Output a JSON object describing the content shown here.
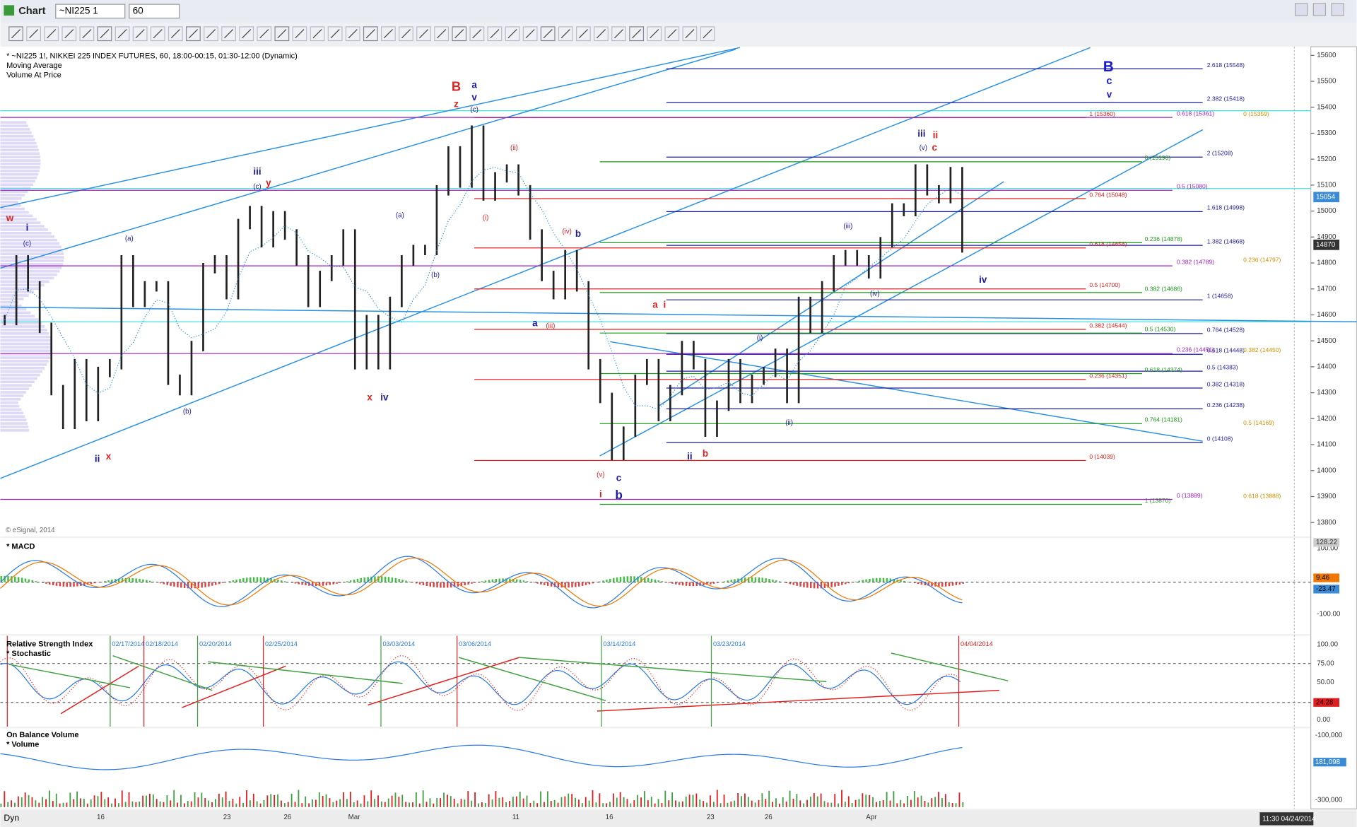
{
  "window": {
    "title": "Chart",
    "symbol": "~NI225 1",
    "interval": "60"
  },
  "legend": [
    "* ~NI225 1!, NIKKEI 225 INDEX FUTURES, 60, 18:00-00:15, 01:30-12:00 (Dynamic)",
    "Moving Average",
    "Volume At Price"
  ],
  "copyright": "© eSignal, 2014",
  "price_ticks": [
    15600,
    15500,
    15400,
    15300,
    15200,
    15100,
    15000,
    14900,
    14800,
    14700,
    14600,
    14500,
    14400,
    14300,
    14200,
    14100,
    14000,
    13900,
    13800
  ],
  "price_flags": [
    {
      "value": 15054,
      "color": "#3a8ad6"
    },
    {
      "value": 14870,
      "color": "#333333"
    }
  ],
  "price_series": [
    14580,
    14810,
    14710,
    14550,
    14310,
    14180,
    14410,
    14210,
    14380,
    14410,
    14810,
    14650,
    14710,
    14710,
    14350,
    14310,
    14480,
    14780,
    14810,
    14680,
    14950,
    15000,
    14880,
    14980,
    14910,
    14810,
    14650,
    14750,
    14810,
    14910,
    14410,
    14580,
    14410,
    14650,
    14810,
    14850,
    14850,
    15080,
    15230,
    15110,
    15310,
    15060,
    15130,
    15160,
    15080,
    14910,
    14750,
    14680,
    14830,
    14710,
    14410,
    14280,
    14060,
    14150,
    14350,
    14410,
    14210,
    14310,
    14480,
    14410,
    14150,
    14250,
    14410,
    14280,
    14350,
    14380,
    14450,
    14280,
    14650,
    14550,
    14710,
    14810,
    14830,
    14810,
    14760,
    14880,
    15010,
    15000,
    15160,
    15080,
    15050,
    15150,
    14860
  ],
  "fib_sets": [
    {
      "color": "#1a1aa0",
      "levels": [
        {
          "value": 15548,
          "label": "2.618 (15548)"
        },
        {
          "value": 15418,
          "label": "2.382 (15418)"
        },
        {
          "value": 15208,
          "label": "2 (15208)"
        },
        {
          "value": 14998,
          "label": "1.618 (14998)"
        },
        {
          "value": 14868,
          "label": "1.382 (14868)"
        },
        {
          "value": 14658,
          "label": "1 (14658)"
        },
        {
          "value": 14528,
          "label": "0.764 (14528)"
        },
        {
          "value": 14448,
          "label": "0.618 (14448)"
        },
        {
          "value": 14383,
          "label": "0.5 (14383)"
        },
        {
          "value": 14318,
          "label": "0.382 (14318)"
        },
        {
          "value": 14238,
          "label": "0.236 (14238)"
        },
        {
          "value": 14108,
          "label": "0 (14108)"
        }
      ]
    },
    {
      "color": "#e02020",
      "levels": [
        {
          "value": 15360,
          "label": "1 (15360)"
        },
        {
          "value": 15048,
          "label": "0.764 (15048)"
        },
        {
          "value": 14858,
          "label": "0.618 (14858)"
        },
        {
          "value": 14700,
          "label": "0.5 (14700)"
        },
        {
          "value": 14544,
          "label": "0.382 (14544)"
        },
        {
          "value": 14351,
          "label": "0.236 (14351)"
        },
        {
          "value": 14039,
          "label": "0 (14039)"
        }
      ]
    },
    {
      "color": "#1a9a1a",
      "levels": [
        {
          "value": 15190,
          "label": "0 (15190)"
        },
        {
          "value": 14878,
          "label": "0.236 (14878)"
        },
        {
          "value": 14686,
          "label": "0.382 (14686)"
        },
        {
          "value": 14530,
          "label": "0.5 (14530)"
        },
        {
          "value": 14374,
          "label": "0.618 (14374)"
        },
        {
          "value": 14181,
          "label": "0.764 (14181)"
        },
        {
          "value": 13870,
          "label": "1 (13870)"
        }
      ]
    },
    {
      "color": "#a020c0",
      "levels": [
        {
          "value": 15361,
          "label": "0.618 (15361)"
        },
        {
          "value": 15080,
          "label": "0.5 (15080)"
        },
        {
          "value": 14789,
          "label": "0.382 (14789)"
        },
        {
          "value": 14451,
          "label": "0.236 (14451)"
        },
        {
          "value": 13889,
          "label": "0 (13889)"
        }
      ]
    },
    {
      "color": "#d09000",
      "levels": [
        {
          "value": 15359,
          "label": "0 (15359)"
        },
        {
          "value": 14797,
          "label": "0.236 (14797)"
        },
        {
          "value": 14450,
          "label": "0.382 (14450)"
        },
        {
          "value": 14169,
          "label": "0.5 (14169)"
        },
        {
          "value": 13888,
          "label": "0.618 (13888)"
        }
      ]
    }
  ],
  "wave_labels": [
    {
      "text": "w",
      "color": "#e02020"
    },
    {
      "text": "i",
      "color": "#1a1aa0"
    },
    {
      "text": "(c)",
      "color": "#1a1aa0"
    },
    {
      "text": "ii",
      "color": "#1a1aa0"
    },
    {
      "text": "x",
      "color": "#e02020"
    },
    {
      "text": "(a)",
      "color": "#1a1aa0"
    },
    {
      "text": "(b)",
      "color": "#1a1aa0"
    },
    {
      "text": "iii",
      "color": "#1a1aa0"
    },
    {
      "text": "(c)",
      "color": "#1a1aa0"
    },
    {
      "text": "y",
      "color": "#e02020"
    },
    {
      "text": "x",
      "color": "#e02020"
    },
    {
      "text": "iv",
      "color": "#1a1aa0"
    },
    {
      "text": "(a)",
      "color": "#1a1aa0"
    },
    {
      "text": "(b)",
      "color": "#1a1aa0"
    },
    {
      "text": "B",
      "color": "#e02020"
    },
    {
      "text": "a",
      "color": "#1a1aa0"
    },
    {
      "text": "z",
      "color": "#e02020"
    },
    {
      "text": "v",
      "color": "#1a1aa0"
    },
    {
      "text": "(c)",
      "color": "#1a1aa0"
    },
    {
      "text": "(i)",
      "color": "#e02020"
    },
    {
      "text": "(ii)",
      "color": "#e02020"
    },
    {
      "text": "(iv)",
      "color": "#e02020"
    },
    {
      "text": "b",
      "color": "#1a1aa0"
    },
    {
      "text": "a",
      "color": "#1a1aa0"
    },
    {
      "text": "(iii)",
      "color": "#e02020"
    },
    {
      "text": "(v)",
      "color": "#e02020"
    },
    {
      "text": "c",
      "color": "#1a1aa0"
    },
    {
      "text": "i",
      "color": "#e02020"
    },
    {
      "text": "b",
      "color": "#1a1aa0"
    },
    {
      "text": "a",
      "color": "#e02020"
    },
    {
      "text": "i",
      "color": "#e02020"
    },
    {
      "text": "ii",
      "color": "#1a1aa0"
    },
    {
      "text": "b",
      "color": "#e02020"
    },
    {
      "text": "(i)",
      "color": "#1a1aa0"
    },
    {
      "text": "(ii)",
      "color": "#1a1aa0"
    },
    {
      "text": "(iii)",
      "color": "#1a1aa0"
    },
    {
      "text": "(iv)",
      "color": "#1a1aa0"
    },
    {
      "text": "iii",
      "color": "#1a1aa0"
    },
    {
      "text": "ii",
      "color": "#e02020"
    },
    {
      "text": "(v)",
      "color": "#1a1aa0"
    },
    {
      "text": "c",
      "color": "#e02020"
    },
    {
      "text": "B",
      "color": "#1a1ad0"
    },
    {
      "text": "c",
      "color": "#1a1ad0"
    },
    {
      "text": "v",
      "color": "#1a1ad0"
    },
    {
      "text": "iv",
      "color": "#1a1aa0"
    }
  ],
  "date_labels": [
    "16",
    "23",
    "26",
    "Mar",
    "11",
    "16",
    "23",
    "26",
    "Apr"
  ],
  "macd": {
    "title": "* MACD",
    "ticks": [
      "100.00",
      "-100.00"
    ],
    "flags": [
      {
        "label": "128.22",
        "color": "#cccccc"
      },
      {
        "label": "9.46",
        "color": "#f07800"
      },
      {
        "label": "-23.47",
        "color": "#3a8ad6"
      }
    ]
  },
  "rsi": {
    "titles": [
      "Relative Strength Index",
      "* Stochastic"
    ],
    "ticks": [
      "100.00",
      "75.00",
      "50.00",
      "0.00"
    ],
    "flag": {
      "label": "24.28",
      "color": "#e02020"
    },
    "dates": [
      "02/17/2014",
      "02/18/2014",
      "02/20/2014",
      "02/25/2014",
      "03/03/2014",
      "03/06/2014",
      "03/14/2014",
      "03/23/2014",
      "04/04/2014"
    ]
  },
  "obv": {
    "titles": [
      "On Balance Volume",
      "* Volume"
    ],
    "ticks": [
      "-100,000",
      "-300,000"
    ],
    "flag": {
      "label": "181,098",
      "color": "#3a8ad6"
    }
  },
  "status": {
    "left": "Dyn",
    "right": "11:30 04/24/2014"
  }
}
